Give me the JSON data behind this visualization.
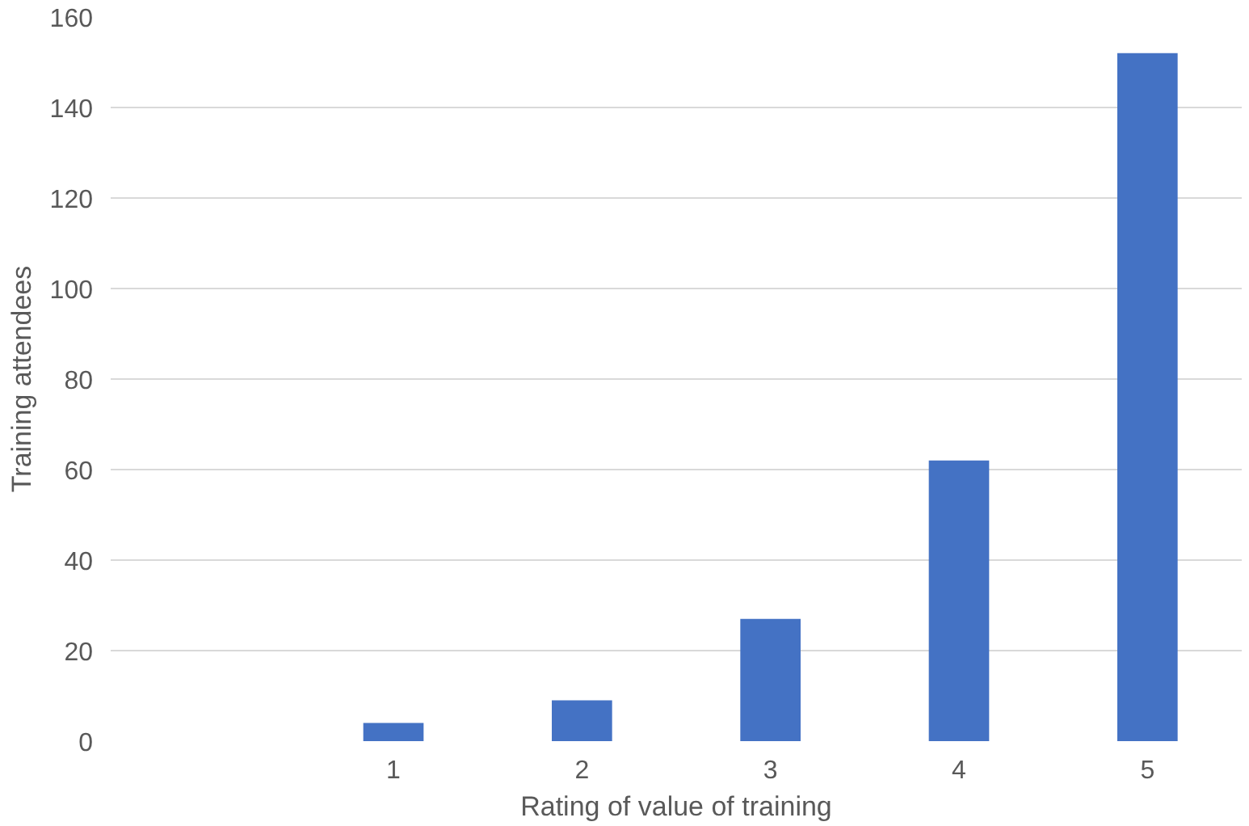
{
  "chart_data": {
    "type": "bar",
    "xlabel": "Rating of value of training",
    "ylabel": "Training attendees",
    "categories": [
      null,
      "1",
      "2",
      "3",
      "4",
      "5"
    ],
    "values": [
      null,
      4,
      9,
      27,
      62,
      152
    ],
    "color": "#4472c4",
    "ylim": [
      0,
      160
    ],
    "yticks": [
      0,
      20,
      40,
      60,
      80,
      100,
      120,
      140,
      160
    ],
    "grid": "y"
  }
}
